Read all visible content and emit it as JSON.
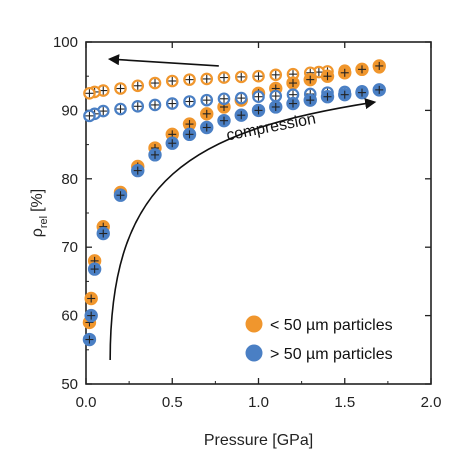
{
  "chart_data": {
    "type": "scatter",
    "title": "",
    "xlabel": "Pressure [GPa]",
    "ylabel_main": "ρ",
    "ylabel_sub": "rel",
    "ylabel_unit": "[%]",
    "xlim": [
      0.0,
      2.0
    ],
    "ylim": [
      50,
      100
    ],
    "x_ticks": [
      "0.0",
      "0.5",
      "1.0",
      "1.5",
      "2.0"
    ],
    "y_ticks": [
      "50",
      "60",
      "70",
      "80",
      "90",
      "100"
    ],
    "grid": false,
    "legend_position": "bottom-right",
    "annotations": {
      "compression": "compression"
    },
    "series": [
      {
        "name": "< 50 µm particles",
        "color": "#F0962D",
        "compression": {
          "x": [
            0.02,
            0.03,
            0.05,
            0.1,
            0.2,
            0.3,
            0.4,
            0.5,
            0.6,
            0.7,
            0.8,
            0.9,
            1.0,
            1.1,
            1.2,
            1.3,
            1.4,
            1.5,
            1.6,
            1.7
          ],
          "y": [
            59.0,
            62.5,
            68.0,
            73.0,
            78.0,
            81.8,
            84.5,
            86.5,
            88.0,
            89.5,
            90.5,
            91.5,
            92.5,
            93.2,
            94.0,
            94.5,
            95.0,
            95.5,
            96.0,
            96.5
          ]
        },
        "decompression": {
          "x": [
            1.7,
            1.6,
            1.5,
            1.4,
            1.35,
            1.3,
            1.2,
            1.1,
            1.0,
            0.9,
            0.8,
            0.7,
            0.6,
            0.5,
            0.4,
            0.3,
            0.2,
            0.1,
            0.05,
            0.02
          ],
          "y": [
            96.3,
            96.0,
            95.8,
            95.7,
            95.6,
            95.5,
            95.3,
            95.2,
            95.0,
            94.9,
            94.8,
            94.6,
            94.5,
            94.3,
            94.0,
            93.6,
            93.2,
            92.9,
            92.7,
            92.5
          ]
        }
      },
      {
        "name": "> 50 µm particles",
        "color": "#4A7FC4",
        "compression": {
          "x": [
            0.02,
            0.03,
            0.05,
            0.1,
            0.2,
            0.3,
            0.4,
            0.5,
            0.6,
            0.7,
            0.8,
            0.9,
            1.0,
            1.1,
            1.2,
            1.3,
            1.4,
            1.5,
            1.6,
            1.7
          ],
          "y": [
            56.5,
            60.0,
            66.8,
            72.0,
            77.6,
            81.2,
            83.5,
            85.2,
            86.5,
            87.5,
            88.5,
            89.3,
            90.0,
            90.5,
            91.0,
            91.5,
            92.0,
            92.3,
            92.6,
            93.0
          ]
        },
        "decompression": {
          "x": [
            1.7,
            1.6,
            1.5,
            1.4,
            1.3,
            1.2,
            1.1,
            1.0,
            0.9,
            0.8,
            0.7,
            0.6,
            0.5,
            0.4,
            0.3,
            0.2,
            0.1,
            0.05,
            0.02
          ],
          "y": [
            93.0,
            92.8,
            92.7,
            92.6,
            92.4,
            92.3,
            92.1,
            92.0,
            91.8,
            91.7,
            91.5,
            91.3,
            91.0,
            90.8,
            90.6,
            90.2,
            89.9,
            89.5,
            89.2
          ]
        }
      }
    ]
  }
}
